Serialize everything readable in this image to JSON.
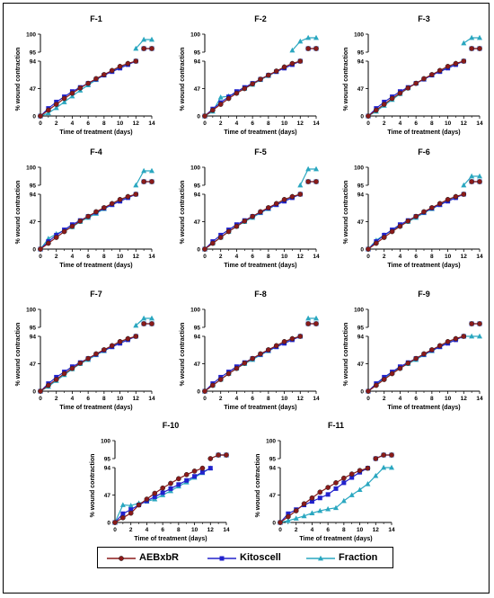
{
  "colors": {
    "AEBxbR": "#8b1a1a",
    "Kitoscell": "#2222cc",
    "Fraction": "#2aa7c0"
  },
  "legend": [
    {
      "series": "AEBxbR",
      "label": "AEBxbR",
      "marker": "circle"
    },
    {
      "series": "Kitoscell",
      "label": "Kitoscell",
      "marker": "square"
    },
    {
      "series": "Fraction",
      "label": "Fraction",
      "marker": "triangle"
    }
  ],
  "chart_data": [
    {
      "type": "line",
      "title": "F-1",
      "xlabel": "Time of treatment (days)",
      "ylabel": "% wound contraction",
      "xlim": [
        0,
        14
      ],
      "y_ticks": [
        "0",
        "47",
        "94",
        "95",
        "100"
      ],
      "x": [
        0,
        1,
        2,
        3,
        4,
        5,
        6,
        7,
        8,
        9,
        10,
        11,
        12,
        13,
        14
      ],
      "series": [
        {
          "name": "AEBxbR",
          "values": [
            0,
            10,
            20,
            30,
            39,
            48,
            56,
            64,
            71,
            78,
            85,
            90,
            94,
            96,
            96
          ]
        },
        {
          "name": "Kitoscell",
          "values": [
            0,
            13,
            24,
            33,
            42,
            49,
            56,
            63,
            70,
            76,
            82,
            88,
            94,
            96,
            96
          ]
        },
        {
          "name": "Fraction",
          "values": [
            0,
            5,
            14,
            24,
            34,
            44,
            53,
            62,
            70,
            77,
            84,
            90,
            96,
            98.5,
            98.5
          ]
        }
      ]
    },
    {
      "type": "line",
      "title": "F-2",
      "xlabel": "Time of treatment (days)",
      "ylabel": "% wound contraction",
      "xlim": [
        0,
        14
      ],
      "y_ticks": [
        "0",
        "47",
        "94",
        "95",
        "100"
      ],
      "x": [
        0,
        1,
        2,
        3,
        4,
        5,
        6,
        7,
        8,
        9,
        10,
        11,
        12,
        13,
        14
      ],
      "series": [
        {
          "name": "AEBxbR",
          "values": [
            0,
            10,
            20,
            30,
            39,
            47,
            55,
            63,
            70,
            77,
            84,
            90,
            94,
            96,
            96
          ]
        },
        {
          "name": "Kitoscell",
          "values": [
            0,
            12,
            23,
            33,
            42,
            49,
            56,
            63,
            70,
            76,
            82,
            88,
            94,
            96,
            96
          ]
        },
        {
          "name": "Fraction",
          "values": [
            0,
            8,
            32,
            34,
            40,
            47,
            54,
            62,
            69,
            76,
            84,
            95.5,
            98,
            99,
            99
          ]
        }
      ]
    },
    {
      "type": "line",
      "title": "F-3",
      "xlabel": "Time of treatment (days)",
      "ylabel": "% wound contraction",
      "xlim": [
        0,
        14
      ],
      "y_ticks": [
        "0",
        "47",
        "94",
        "95",
        "100"
      ],
      "x": [
        0,
        1,
        2,
        3,
        4,
        5,
        6,
        7,
        8,
        9,
        10,
        11,
        12,
        13,
        14
      ],
      "series": [
        {
          "name": "AEBxbR",
          "values": [
            0,
            10,
            20,
            30,
            39,
            48,
            56,
            64,
            71,
            78,
            85,
            90,
            94,
            96,
            96
          ]
        },
        {
          "name": "Kitoscell",
          "values": [
            0,
            13,
            24,
            33,
            42,
            49,
            56,
            63,
            70,
            76,
            82,
            88,
            94,
            96,
            96
          ]
        },
        {
          "name": "Fraction",
          "values": [
            0,
            8,
            18,
            28,
            38,
            48,
            56,
            63,
            70,
            77,
            84,
            90,
            97.5,
            99,
            99
          ]
        }
      ]
    },
    {
      "type": "line",
      "title": "F-4",
      "xlabel": "Time of treatment (days)",
      "ylabel": "% wound contraction",
      "xlim": [
        0,
        14
      ],
      "y_ticks": [
        "0",
        "47",
        "94",
        "95",
        "100"
      ],
      "x": [
        0,
        1,
        2,
        3,
        4,
        5,
        6,
        7,
        8,
        9,
        10,
        11,
        12,
        13,
        14
      ],
      "series": [
        {
          "name": "AEBxbR",
          "values": [
            0,
            10,
            20,
            30,
            39,
            48,
            56,
            64,
            71,
            78,
            85,
            90,
            94,
            96,
            96
          ]
        },
        {
          "name": "Kitoscell",
          "values": [
            0,
            13,
            24,
            33,
            42,
            49,
            56,
            63,
            70,
            76,
            82,
            88,
            94,
            96,
            96
          ]
        },
        {
          "name": "Fraction",
          "values": [
            0,
            18,
            26,
            32,
            38,
            47,
            54,
            61,
            69,
            76,
            84,
            90,
            95,
            99,
            99
          ]
        }
      ]
    },
    {
      "type": "line",
      "title": "F-5",
      "xlabel": "Time of treatment (days)",
      "ylabel": "% wound contraction",
      "xlim": [
        0,
        14
      ],
      "y_ticks": [
        "0",
        "47",
        "94",
        "95",
        "100"
      ],
      "x": [
        0,
        1,
        2,
        3,
        4,
        5,
        6,
        7,
        8,
        9,
        10,
        11,
        12,
        13,
        14
      ],
      "series": [
        {
          "name": "AEBxbR",
          "values": [
            0,
            10,
            20,
            30,
            39,
            48,
            56,
            64,
            71,
            78,
            85,
            90,
            94,
            96,
            96
          ]
        },
        {
          "name": "Kitoscell",
          "values": [
            0,
            13,
            24,
            33,
            42,
            49,
            56,
            63,
            70,
            76,
            82,
            88,
            94,
            96,
            96
          ]
        },
        {
          "name": "Fraction",
          "values": [
            0,
            10,
            20,
            30,
            39,
            47,
            54,
            62,
            69,
            76,
            84,
            90,
            95,
            99.5,
            99.5
          ]
        }
      ]
    },
    {
      "type": "line",
      "title": "F-6",
      "xlabel": "Time of treatment (days)",
      "ylabel": "% wound contraction",
      "xlim": [
        0,
        14
      ],
      "y_ticks": [
        "0",
        "47",
        "94",
        "95",
        "100"
      ],
      "x": [
        0,
        1,
        2,
        3,
        4,
        5,
        6,
        7,
        8,
        9,
        10,
        11,
        12,
        13,
        14
      ],
      "series": [
        {
          "name": "AEBxbR",
          "values": [
            0,
            10,
            20,
            30,
            39,
            48,
            56,
            64,
            71,
            78,
            85,
            90,
            94,
            96,
            96
          ]
        },
        {
          "name": "Kitoscell",
          "values": [
            0,
            13,
            24,
            33,
            42,
            49,
            56,
            63,
            70,
            76,
            82,
            88,
            94,
            96,
            96
          ]
        },
        {
          "name": "Fraction",
          "values": [
            0,
            15,
            24,
            32,
            40,
            47,
            54,
            62,
            69,
            76,
            84,
            90,
            95,
            97.5,
            97.5
          ]
        }
      ]
    },
    {
      "type": "line",
      "title": "F-7",
      "xlabel": "Time of treatment (days)",
      "ylabel": "% wound contraction",
      "xlim": [
        0,
        14
      ],
      "y_ticks": [
        "0",
        "47",
        "94",
        "95",
        "100"
      ],
      "x": [
        0,
        1,
        2,
        3,
        4,
        5,
        6,
        7,
        8,
        9,
        10,
        11,
        12,
        13,
        14
      ],
      "series": [
        {
          "name": "AEBxbR",
          "values": [
            0,
            10,
            20,
            30,
            39,
            48,
            56,
            64,
            71,
            78,
            85,
            90,
            94,
            96,
            96
          ]
        },
        {
          "name": "Kitoscell",
          "values": [
            0,
            13,
            24,
            33,
            42,
            49,
            56,
            63,
            70,
            76,
            82,
            88,
            94,
            96,
            96
          ]
        },
        {
          "name": "Fraction",
          "values": [
            0,
            8,
            18,
            28,
            38,
            47,
            54,
            62,
            69,
            76,
            84,
            90,
            95.5,
            97.5,
            97.5
          ]
        }
      ]
    },
    {
      "type": "line",
      "title": "F-8",
      "xlabel": "Time of treatment (days)",
      "ylabel": "% wound contraction",
      "xlim": [
        0,
        14
      ],
      "y_ticks": [
        "0",
        "47",
        "94",
        "95",
        "100"
      ],
      "x": [
        0,
        1,
        2,
        3,
        4,
        5,
        6,
        7,
        8,
        9,
        10,
        11,
        12,
        13,
        14
      ],
      "series": [
        {
          "name": "AEBxbR",
          "values": [
            0,
            10,
            20,
            30,
            39,
            48,
            56,
            64,
            71,
            78,
            85,
            90,
            94,
            96,
            96
          ]
        },
        {
          "name": "Kitoscell",
          "values": [
            0,
            13,
            24,
            33,
            42,
            49,
            56,
            63,
            70,
            76,
            82,
            88,
            94,
            96,
            96
          ]
        },
        {
          "name": "Fraction",
          "values": [
            0,
            10,
            20,
            30,
            39,
            47,
            54,
            62,
            69,
            76,
            84,
            90,
            94,
            97.5,
            97.5
          ]
        }
      ]
    },
    {
      "type": "line",
      "title": "F-9",
      "xlabel": "Time of treatment (days)",
      "ylabel": "% wound contraction",
      "xlim": [
        0,
        14
      ],
      "y_ticks": [
        "0",
        "47",
        "94",
        "95",
        "100"
      ],
      "x": [
        0,
        1,
        2,
        3,
        4,
        5,
        6,
        7,
        8,
        9,
        10,
        11,
        12,
        13,
        14
      ],
      "series": [
        {
          "name": "AEBxbR",
          "values": [
            0,
            10,
            20,
            30,
            39,
            48,
            56,
            64,
            71,
            78,
            85,
            90,
            94,
            96,
            96
          ]
        },
        {
          "name": "Kitoscell",
          "values": [
            0,
            13,
            24,
            33,
            42,
            49,
            56,
            63,
            70,
            76,
            82,
            88,
            94,
            96,
            96
          ]
        },
        {
          "name": "Fraction",
          "values": [
            0,
            12,
            22,
            32,
            40,
            47,
            54,
            62,
            69,
            76,
            84,
            90,
            94,
            94,
            94
          ]
        }
      ]
    },
    {
      "type": "line",
      "title": "F-10",
      "xlabel": "Time of treatment (days)",
      "ylabel": "% wound contraction",
      "xlim": [
        0,
        14
      ],
      "y_ticks": [
        "0",
        "47",
        "94",
        "95",
        "100"
      ],
      "x": [
        0,
        1,
        2,
        3,
        4,
        5,
        6,
        7,
        8,
        9,
        10,
        11,
        12,
        13,
        14
      ],
      "series": [
        {
          "name": "AEBxbR",
          "values": [
            0,
            8,
            16,
            30,
            40,
            50,
            59,
            67,
            75,
            82,
            88,
            93,
            95,
            96,
            96
          ]
        },
        {
          "name": "Kitoscell",
          "values": [
            0,
            15,
            22,
            30,
            37,
            44,
            51,
            58,
            65,
            72,
            79,
            86,
            93,
            96,
            96
          ]
        },
        {
          "name": "Fraction",
          "values": [
            0,
            30,
            29,
            33,
            36,
            40,
            47,
            54,
            62,
            69,
            77,
            85,
            93,
            96,
            96
          ]
        }
      ]
    },
    {
      "type": "line",
      "title": "F-11",
      "xlabel": "Time of treatment (days)",
      "ylabel": "% wound contraction",
      "xlim": [
        0,
        14
      ],
      "y_ticks": [
        "0",
        "47",
        "94",
        "95",
        "100"
      ],
      "x": [
        0,
        1,
        2,
        3,
        4,
        5,
        6,
        7,
        8,
        9,
        10,
        11,
        12,
        13,
        14
      ],
      "series": [
        {
          "name": "AEBxbR",
          "values": [
            0,
            10,
            20,
            32,
            42,
            52,
            60,
            68,
            76,
            83,
            89,
            93,
            95,
            96,
            96
          ]
        },
        {
          "name": "Kitoscell",
          "values": [
            0,
            15,
            22,
            30,
            36,
            42,
            48,
            58,
            68,
            77,
            86,
            93,
            95,
            96,
            96
          ]
        },
        {
          "name": "Fraction",
          "values": [
            0,
            3,
            7,
            11,
            16,
            20,
            23,
            25,
            37,
            47,
            56,
            66,
            80,
            94,
            94
          ]
        }
      ]
    }
  ]
}
